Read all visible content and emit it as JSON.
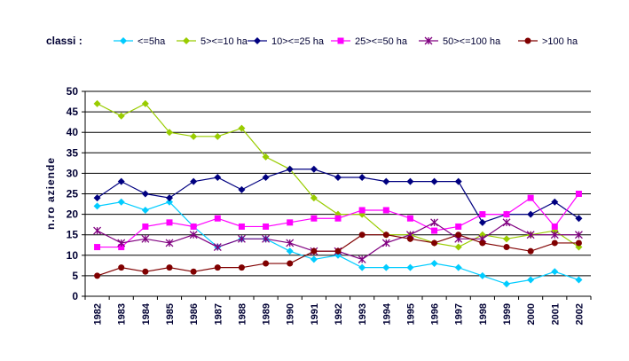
{
  "chart_data": {
    "type": "line",
    "title": "",
    "xlabel": "",
    "ylabel": "n.ro aziende",
    "ylim": [
      0,
      50
    ],
    "ytick_step": 5,
    "grid": "horizontal",
    "legend_title": "classi :",
    "legend_position": "top",
    "categories": [
      "1982",
      "1983",
      "1984",
      "1985",
      "1986",
      "1987",
      "1988",
      "1989",
      "1990",
      "1991",
      "1992",
      "1993",
      "1994",
      "1995",
      "1996",
      "1997",
      "1998",
      "1999",
      "2000",
      "2001",
      "2002"
    ],
    "series": [
      {
        "name": "<=5ha",
        "color": "#00CCFF",
        "marker": "diamond",
        "values": [
          22,
          23,
          21,
          23,
          17,
          12,
          14,
          14,
          11,
          9,
          10,
          7,
          7,
          7,
          8,
          7,
          5,
          3,
          4,
          6,
          4
        ]
      },
      {
        "name": "5><=10 ha",
        "color": "#99CC00",
        "marker": "diamond",
        "values": [
          47,
          44,
          47,
          40,
          39,
          39,
          41,
          34,
          31,
          24,
          20,
          20,
          15,
          15,
          13,
          12,
          15,
          14,
          15,
          16,
          12
        ]
      },
      {
        "name": "10><=25 ha",
        "color": "#000080",
        "marker": "diamond",
        "values": [
          24,
          28,
          25,
          24,
          28,
          29,
          26,
          29,
          31,
          31,
          29,
          29,
          28,
          28,
          28,
          28,
          18,
          20,
          20,
          23,
          19
        ]
      },
      {
        "name": "25><=50 ha",
        "color": "#FF00FF",
        "marker": "square",
        "values": [
          12,
          12,
          17,
          18,
          17,
          19,
          17,
          17,
          18,
          19,
          19,
          21,
          21,
          19,
          16,
          17,
          20,
          20,
          24,
          17,
          25
        ]
      },
      {
        "name": "50><=100 ha",
        "color": "#800080",
        "marker": "star",
        "values": [
          16,
          13,
          14,
          13,
          15,
          12,
          14,
          14,
          13,
          11,
          11,
          9,
          13,
          15,
          18,
          14,
          14,
          18,
          15,
          15,
          15
        ]
      },
      {
        "name": ">100 ha",
        "color": "#800000",
        "marker": "circle",
        "values": [
          5,
          7,
          6,
          7,
          6,
          7,
          7,
          8,
          8,
          11,
          11,
          15,
          15,
          14,
          13,
          15,
          13,
          12,
          11,
          13,
          13
        ]
      }
    ]
  }
}
